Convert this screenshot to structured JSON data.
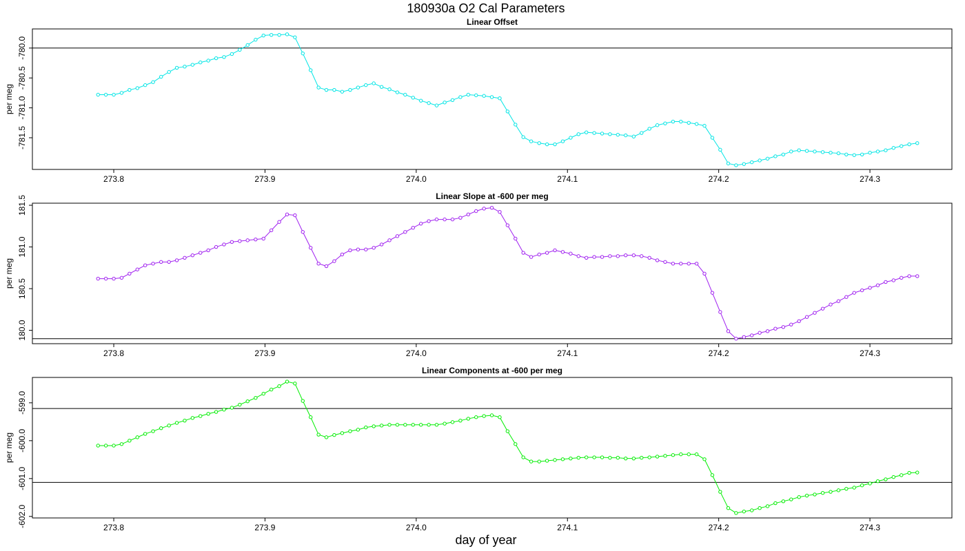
{
  "title": "180930a   O2 Cal Parameters",
  "xlabel": "day of year",
  "chart_data": [
    {
      "type": "line",
      "title": "Linear Offset",
      "ylabel": "per meg",
      "x": [
        273.7896,
        273.7948,
        273.8,
        273.8052,
        273.8104,
        273.8156,
        273.8208,
        273.826,
        273.8313,
        273.8365,
        273.8417,
        273.8469,
        273.8521,
        273.8573,
        273.8625,
        273.8677,
        273.8729,
        273.8781,
        273.8833,
        273.8885,
        273.8938,
        273.899,
        273.9042,
        273.9094,
        273.9146,
        273.9198,
        273.925,
        273.9302,
        273.9354,
        273.9406,
        273.9458,
        273.951,
        273.9563,
        273.9615,
        273.9667,
        273.9719,
        273.9771,
        273.9823,
        273.9875,
        273.9927,
        273.9979,
        274.0031,
        274.0083,
        274.0135,
        274.0188,
        274.024,
        274.0292,
        274.0344,
        274.0396,
        274.0448,
        274.05,
        274.0552,
        274.0604,
        274.0656,
        274.0708,
        274.076,
        274.0813,
        274.0865,
        274.0917,
        274.0969,
        274.1021,
        274.1073,
        274.1125,
        274.1177,
        274.1229,
        274.1281,
        274.1333,
        274.1385,
        274.1438,
        274.149,
        274.1542,
        274.1594,
        274.1646,
        274.1698,
        274.175,
        274.1802,
        274.1854,
        274.1906,
        274.1958,
        274.201,
        274.2063,
        274.2115,
        274.2167,
        274.2219,
        274.2271,
        274.2323,
        274.2375,
        274.2427,
        274.2479,
        274.2531,
        274.2583,
        274.2635,
        274.2688,
        274.274,
        274.2792,
        274.2844,
        274.2896,
        274.2948,
        274.3,
        274.3052,
        274.3104,
        274.3156,
        274.3208,
        274.326,
        274.3313
      ],
      "series": [
        {
          "color": "#00e5e5",
          "values": [
            -780.78,
            -780.78,
            -780.78,
            -780.75,
            -780.7,
            -780.67,
            -780.62,
            -780.57,
            -780.48,
            -780.4,
            -780.33,
            -780.31,
            -780.28,
            -780.24,
            -780.21,
            -780.17,
            -780.15,
            -780.1,
            -780.03,
            -779.95,
            -779.86,
            -779.79,
            -779.78,
            -779.78,
            -779.77,
            -779.82,
            -780.09,
            -780.37,
            -780.66,
            -780.7,
            -780.7,
            -780.73,
            -780.7,
            -780.66,
            -780.62,
            -780.59,
            -780.65,
            -780.69,
            -780.74,
            -780.78,
            -780.83,
            -780.88,
            -780.92,
            -780.96,
            -780.91,
            -780.87,
            -780.82,
            -780.78,
            -780.79,
            -780.8,
            -780.82,
            -780.84,
            -781.06,
            -781.28,
            -781.49,
            -781.56,
            -781.59,
            -781.61,
            -781.61,
            -781.56,
            -781.5,
            -781.44,
            -781.41,
            -781.42,
            -781.43,
            -781.44,
            -781.45,
            -781.46,
            -781.48,
            -781.42,
            -781.35,
            -781.29,
            -781.26,
            -781.23,
            -781.23,
            -781.25,
            -781.27,
            -781.3,
            -781.5,
            -781.7,
            -781.93,
            -781.96,
            -781.94,
            -781.91,
            -781.88,
            -781.85,
            -781.81,
            -781.78,
            -781.73,
            -781.71,
            -781.72,
            -781.73,
            -781.74,
            -781.75,
            -781.76,
            -781.78,
            -781.79,
            -781.78,
            -781.75,
            -781.73,
            -781.71,
            -781.67,
            -781.64,
            -781.61,
            -781.59
          ]
        }
      ],
      "hlines": [
        -780
      ],
      "xlim": [
        273.7462,
        274.3542
      ],
      "xticks": [
        273.8,
        273.9,
        {
          "value": 274,
          "label": "274.0"
        },
        274.1,
        274.2,
        274.3
      ],
      "ylim": [
        -782.03,
        -779.68
      ],
      "yticks": [
        {
          "value": -780,
          "label": "-780.0"
        },
        -780.5,
        {
          "value": -781,
          "label": "-781.0"
        },
        -781.5
      ]
    },
    {
      "type": "line",
      "title": "Linear Slope at -600 per meg",
      "ylabel": "per meg",
      "x": [
        273.7896,
        273.7948,
        273.8,
        273.8052,
        273.8104,
        273.8156,
        273.8208,
        273.826,
        273.8313,
        273.8365,
        273.8417,
        273.8469,
        273.8521,
        273.8573,
        273.8625,
        273.8677,
        273.8729,
        273.8781,
        273.8833,
        273.8885,
        273.8938,
        273.899,
        273.9042,
        273.9094,
        273.9146,
        273.9198,
        273.925,
        273.9302,
        273.9354,
        273.9406,
        273.9458,
        273.951,
        273.9563,
        273.9615,
        273.9667,
        273.9719,
        273.9771,
        273.9823,
        273.9875,
        273.9927,
        273.9979,
        274.0031,
        274.0083,
        274.0135,
        274.0188,
        274.024,
        274.0292,
        274.0344,
        274.0396,
        274.0448,
        274.05,
        274.0552,
        274.0604,
        274.0656,
        274.0708,
        274.076,
        274.0813,
        274.0865,
        274.0917,
        274.0969,
        274.1021,
        274.1073,
        274.1125,
        274.1177,
        274.1229,
        274.1281,
        274.1333,
        274.1385,
        274.1438,
        274.149,
        274.1542,
        274.1594,
        274.1646,
        274.1698,
        274.175,
        274.1802,
        274.1854,
        274.1906,
        274.1958,
        274.201,
        274.2063,
        274.2115,
        274.2167,
        274.2219,
        274.2271,
        274.2323,
        274.2375,
        274.2427,
        274.2479,
        274.2531,
        274.2583,
        274.2635,
        274.2688,
        274.274,
        274.2792,
        274.2844,
        274.2896,
        274.2948,
        274.3,
        274.3052,
        274.3104,
        274.3156,
        274.3208,
        274.326,
        274.3313
      ],
      "series": [
        {
          "color": "#a020f0",
          "values": [
            180.62,
            180.62,
            180.62,
            180.63,
            180.68,
            180.73,
            180.78,
            180.8,
            180.82,
            180.82,
            180.84,
            180.87,
            180.9,
            180.93,
            180.96,
            181.0,
            181.03,
            181.06,
            181.07,
            181.08,
            181.09,
            181.1,
            181.2,
            181.3,
            181.39,
            181.38,
            181.18,
            180.99,
            180.8,
            180.77,
            180.83,
            180.91,
            180.96,
            180.97,
            180.97,
            180.99,
            181.03,
            181.08,
            181.13,
            181.18,
            181.23,
            181.28,
            181.31,
            181.33,
            181.33,
            181.33,
            181.35,
            181.39,
            181.43,
            181.46,
            181.47,
            181.42,
            181.26,
            181.1,
            180.93,
            180.88,
            180.91,
            180.93,
            180.96,
            180.94,
            180.92,
            180.89,
            180.87,
            180.88,
            180.88,
            180.89,
            180.89,
            180.9,
            180.9,
            180.89,
            180.87,
            180.84,
            180.82,
            180.8,
            180.8,
            180.8,
            180.8,
            180.68,
            180.45,
            180.22,
            179.99,
            179.9,
            179.92,
            179.94,
            179.97,
            179.99,
            180.02,
            180.04,
            180.07,
            180.11,
            180.16,
            180.21,
            180.26,
            180.31,
            180.35,
            180.4,
            180.45,
            180.48,
            180.51,
            180.54,
            180.58,
            180.6,
            180.63,
            180.65,
            180.65
          ]
        }
      ],
      "hlines": [
        179.9
      ],
      "xlim": [
        273.7462,
        274.3542
      ],
      "xticks": [
        273.8,
        273.9,
        {
          "value": 274,
          "label": "274.0"
        },
        274.1,
        274.2,
        274.3
      ],
      "ylim": [
        179.84,
        181.525
      ],
      "yticks": [
        {
          "value": 180,
          "label": "180.0"
        },
        180.5,
        {
          "value": 181,
          "label": "181.0"
        },
        181.5
      ]
    },
    {
      "type": "line",
      "title": "Linear Components at -600 per meg",
      "ylabel": "per meg",
      "x": [
        273.7896,
        273.7948,
        273.8,
        273.8052,
        273.8104,
        273.8156,
        273.8208,
        273.826,
        273.8313,
        273.8365,
        273.8417,
        273.8469,
        273.8521,
        273.8573,
        273.8625,
        273.8677,
        273.8729,
        273.8781,
        273.8833,
        273.8885,
        273.8938,
        273.899,
        273.9042,
        273.9094,
        273.9146,
        273.9198,
        273.925,
        273.9302,
        273.9354,
        273.9406,
        273.9458,
        273.951,
        273.9563,
        273.9615,
        273.9667,
        273.9719,
        273.9771,
        273.9823,
        273.9875,
        273.9927,
        273.9979,
        274.0031,
        274.0083,
        274.0135,
        274.0188,
        274.024,
        274.0292,
        274.0344,
        274.0396,
        274.0448,
        274.05,
        274.0552,
        274.0604,
        274.0656,
        274.0708,
        274.076,
        274.0813,
        274.0865,
        274.0917,
        274.0969,
        274.1021,
        274.1073,
        274.1125,
        274.1177,
        274.1229,
        274.1281,
        274.1333,
        274.1385,
        274.1438,
        274.149,
        274.1542,
        274.1594,
        274.1646,
        274.1698,
        274.175,
        274.1802,
        274.1854,
        274.1906,
        274.1958,
        274.201,
        274.2063,
        274.2115,
        274.2167,
        274.2219,
        274.2271,
        274.2323,
        274.2375,
        274.2427,
        274.2479,
        274.2531,
        274.2583,
        274.2635,
        274.2688,
        274.274,
        274.2792,
        274.2844,
        274.2896,
        274.2948,
        274.3,
        274.3052,
        274.3104,
        274.3156,
        274.3208,
        274.326,
        274.3313
      ],
      "series": [
        {
          "color": "#00ee00",
          "values": [
            -600.13,
            -600.13,
            -600.13,
            -600.09,
            -600.0,
            -599.91,
            -599.82,
            -599.75,
            -599.67,
            -599.6,
            -599.53,
            -599.47,
            -599.4,
            -599.35,
            -599.29,
            -599.24,
            -599.18,
            -599.13,
            -599.05,
            -598.96,
            -598.87,
            -598.76,
            -598.65,
            -598.56,
            -598.44,
            -598.49,
            -598.95,
            -599.38,
            -599.84,
            -599.91,
            -599.85,
            -599.8,
            -599.75,
            -599.71,
            -599.65,
            -599.62,
            -599.6,
            -599.58,
            -599.58,
            -599.58,
            -599.58,
            -599.58,
            -599.58,
            -599.58,
            -599.55,
            -599.51,
            -599.47,
            -599.42,
            -599.38,
            -599.35,
            -599.33,
            -599.38,
            -599.75,
            -600.09,
            -600.44,
            -600.55,
            -600.55,
            -600.53,
            -600.51,
            -600.49,
            -600.47,
            -600.45,
            -600.44,
            -600.44,
            -600.44,
            -600.45,
            -600.45,
            -600.47,
            -600.47,
            -600.45,
            -600.44,
            -600.42,
            -600.4,
            -600.38,
            -600.36,
            -600.36,
            -600.36,
            -600.49,
            -600.91,
            -601.35,
            -601.78,
            -601.91,
            -601.87,
            -601.84,
            -601.78,
            -601.73,
            -601.65,
            -601.6,
            -601.55,
            -601.49,
            -601.45,
            -601.42,
            -601.38,
            -601.35,
            -601.31,
            -601.27,
            -601.24,
            -601.18,
            -601.13,
            -601.07,
            -601.02,
            -600.96,
            -600.91,
            -600.85,
            -600.84
          ]
        }
      ],
      "hlines": [
        -599.15,
        -601.1
      ],
      "xlim": [
        273.7462,
        274.3542
      ],
      "xticks": [
        273.8,
        273.9,
        {
          "value": 274,
          "label": "274.0"
        },
        274.1,
        274.2,
        274.3
      ],
      "ylim": [
        -602.04,
        -598.33
      ],
      "yticks": [
        {
          "value": -599,
          "label": "-599.0"
        },
        {
          "value": -600,
          "label": "-600.0"
        },
        {
          "value": -601,
          "label": "-601.0"
        },
        {
          "value": -602,
          "label": "-602.0"
        }
      ]
    }
  ]
}
